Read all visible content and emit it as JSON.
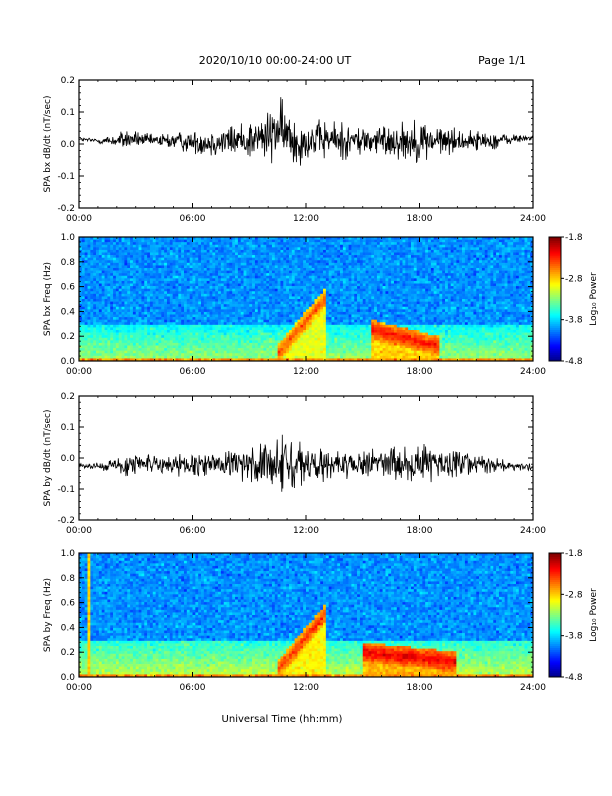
{
  "header": {
    "title": "2020/10/10  00:00-24:00 UT",
    "page": "Page 1/1"
  },
  "footer": {
    "xlabel": "Universal Time (hh:mm)"
  },
  "colorbar": {
    "label": "Log₁₀ Power",
    "ticks": [
      "-1.8",
      "-2.8",
      "-3.8",
      "-4.8"
    ]
  },
  "colors": {
    "trace": "#000000",
    "background": "#ffffff"
  },
  "chart_data": [
    {
      "type": "line",
      "ylabel": "SPA bx dB/dt (nT/sec)",
      "xlim": [
        "00:00",
        "24:00"
      ],
      "xticks": [
        "00:00",
        "06:00",
        "12:00",
        "18:00",
        "24:00"
      ],
      "ylim": [
        -0.2,
        0.2
      ],
      "yticks": [
        "0.2",
        "0.1",
        "0.0",
        "-0.1",
        "-0.2"
      ],
      "series": [
        {
          "x": [
            0,
            1,
            2,
            2.5,
            3,
            4,
            5,
            6,
            7,
            8,
            9,
            10,
            10.5,
            11,
            11.5,
            12,
            13,
            14,
            15,
            16,
            17,
            18,
            19,
            20,
            21,
            22,
            23,
            24
          ],
          "ymax": [
            0.02,
            0.02,
            0.03,
            0.05,
            0.04,
            0.03,
            0.04,
            0.04,
            0.05,
            0.06,
            0.08,
            0.1,
            0.16,
            0.12,
            0.1,
            0.07,
            0.08,
            0.07,
            0.06,
            0.06,
            0.07,
            0.08,
            0.06,
            0.05,
            0.04,
            0.04,
            0.03,
            0.03
          ],
          "ymin": [
            0.01,
            0.0,
            -0.01,
            -0.02,
            -0.01,
            -0.01,
            -0.02,
            -0.03,
            -0.04,
            -0.04,
            -0.05,
            -0.06,
            -0.06,
            -0.07,
            -0.08,
            -0.05,
            -0.05,
            -0.05,
            -0.04,
            -0.04,
            -0.05,
            -0.06,
            -0.04,
            -0.03,
            -0.02,
            -0.02,
            0.0,
            0.01
          ]
        }
      ]
    },
    {
      "type": "heatmap",
      "ylabel": "SPA bx Freq (Hz)",
      "xlim": [
        "00:00",
        "24:00"
      ],
      "xticks": [
        "00:00",
        "06:00",
        "12:00",
        "18:00",
        "24:00"
      ],
      "ylim": [
        0.0,
        1.0
      ],
      "yticks": [
        "1.0",
        "0.8",
        "0.6",
        "0.4",
        "0.2",
        "0.0"
      ],
      "zlim": [
        -4.8,
        -1.8
      ],
      "features": [
        {
          "t0": 10.5,
          "t1": 13.0,
          "f0": 0.05,
          "f1": 0.5,
          "power": -2.4
        },
        {
          "t0": 15.5,
          "t1": 19.0,
          "f0": 0.25,
          "f1": 0.12,
          "power": -2.2
        },
        {
          "t0": 0,
          "t1": 24,
          "f0": 0.0,
          "f1": 0.3,
          "power": -3.2
        }
      ]
    },
    {
      "type": "line",
      "ylabel": "SPA by dB/dt (nT/sec)",
      "xlim": [
        "00:00",
        "24:00"
      ],
      "xticks": [
        "00:00",
        "06:00",
        "12:00",
        "18:00",
        "24:00"
      ],
      "ylim": [
        -0.2,
        0.2
      ],
      "yticks": [
        "0.2",
        "0.1",
        "0.0",
        "-0.1",
        "-0.2"
      ],
      "series": [
        {
          "x": [
            0,
            1,
            2,
            2.5,
            3,
            4,
            5,
            6,
            7,
            8,
            9,
            10,
            10.5,
            11,
            11.5,
            12,
            13,
            14,
            15,
            16,
            17,
            18,
            19,
            20,
            21,
            22,
            23,
            24
          ],
          "ymax": [
            -0.02,
            -0.01,
            0.0,
            0.03,
            0.02,
            0.01,
            0.02,
            0.01,
            0.02,
            0.03,
            0.04,
            0.05,
            0.07,
            0.08,
            0.06,
            0.04,
            0.04,
            0.03,
            0.03,
            0.03,
            0.04,
            0.05,
            0.03,
            0.02,
            0.01,
            0.0,
            -0.01,
            -0.02
          ],
          "ymin": [
            -0.03,
            -0.04,
            -0.05,
            -0.07,
            -0.05,
            -0.05,
            -0.06,
            -0.06,
            -0.06,
            -0.07,
            -0.08,
            -0.09,
            -0.1,
            -0.12,
            -0.1,
            -0.08,
            -0.08,
            -0.07,
            -0.07,
            -0.07,
            -0.08,
            -0.09,
            -0.07,
            -0.06,
            -0.05,
            -0.05,
            -0.04,
            -0.04
          ]
        }
      ]
    },
    {
      "type": "heatmap",
      "ylabel": "SPA by Freq (Hz)",
      "xlim": [
        "00:00",
        "24:00"
      ],
      "xticks": [
        "00:00",
        "06:00",
        "12:00",
        "18:00",
        "24:00"
      ],
      "ylim": [
        0.0,
        1.0
      ],
      "yticks": [
        "1.0",
        "0.8",
        "0.6",
        "0.4",
        "0.2",
        "0.0"
      ],
      "zlim": [
        -4.8,
        -1.8
      ],
      "features": [
        {
          "t0": 10.5,
          "t1": 13.0,
          "f0": 0.05,
          "f1": 0.5,
          "power": -2.3
        },
        {
          "t0": 15.0,
          "t1": 20.0,
          "f0": 0.2,
          "f1": 0.12,
          "power": -2.1
        },
        {
          "t0": 0,
          "t1": 24,
          "f0": 0.0,
          "f1": 0.3,
          "power": -3.1
        },
        {
          "t0": 0.5,
          "t1": 0.6,
          "f0": 0.0,
          "f1": 1.0,
          "power": -2.8
        }
      ]
    }
  ]
}
